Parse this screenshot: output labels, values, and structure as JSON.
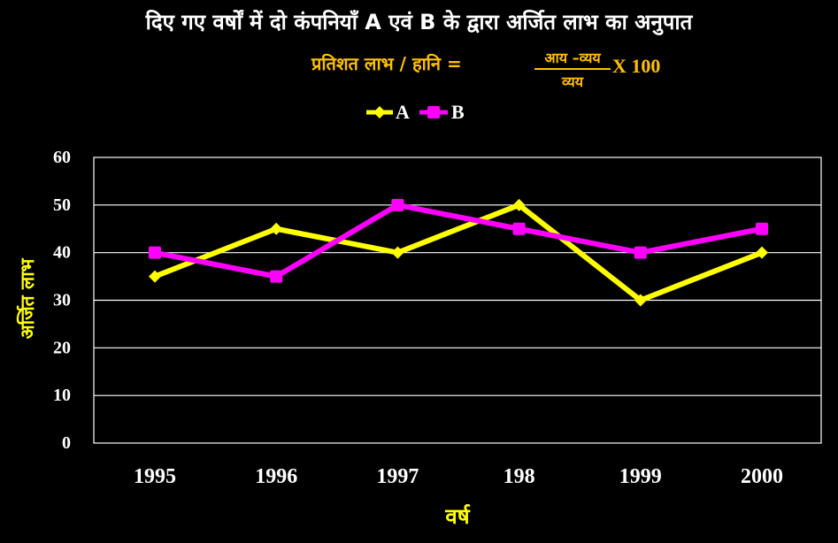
{
  "title": "दिए गए वर्षों में दो कंपनियाँ A एवं B के द्वारा अर्जित लाभ का अनुपात",
  "formula": {
    "lhs": "प्रतिशत लाभ / हानि =",
    "numerator": "आय –व्यय",
    "denominator": "व्यय",
    "multiplier": "X 100"
  },
  "chart_data": {
    "type": "line",
    "categories": [
      "1995",
      "1996",
      "1997",
      "198",
      "1999",
      "2000"
    ],
    "series": [
      {
        "name": "A",
        "values": [
          35,
          45,
          40,
          50,
          30,
          40
        ],
        "color": "#ffff00",
        "marker": "diamond"
      },
      {
        "name": "B",
        "values": [
          40,
          35,
          50,
          45,
          40,
          45
        ],
        "color": "#ff00ff",
        "marker": "square"
      }
    ],
    "xlabel": "वर्ष",
    "ylabel": "अर्जित लाभ",
    "ylim": [
      0,
      60
    ],
    "yticks": [
      0,
      10,
      20,
      30,
      40,
      50,
      60
    ],
    "grid": true,
    "legend": "top-center"
  }
}
